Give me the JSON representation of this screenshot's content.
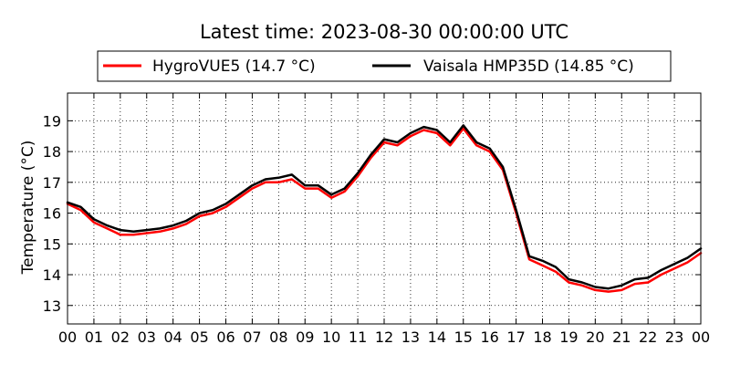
{
  "chart_data": {
    "type": "line",
    "title": "Latest time: 2023-08-30 00:00:00 UTC",
    "xlabel": "",
    "ylabel": "Temperature (°C)",
    "xlim": [
      0,
      24
    ],
    "ylim": [
      12.4,
      19.9
    ],
    "x_tick_labels": [
      "00",
      "01",
      "02",
      "03",
      "04",
      "05",
      "06",
      "07",
      "08",
      "09",
      "10",
      "11",
      "12",
      "13",
      "14",
      "15",
      "16",
      "17",
      "18",
      "19",
      "20",
      "21",
      "22",
      "23",
      "00"
    ],
    "y_ticks": [
      13,
      14,
      15,
      16,
      17,
      18,
      19
    ],
    "grid": true,
    "legend_position": "top",
    "series": [
      {
        "name": "HygroVUE5 (14.7 °C)",
        "color": "#ff0000",
        "x": [
          0,
          0.5,
          1,
          1.5,
          2,
          2.5,
          3,
          3.5,
          4,
          4.5,
          5,
          5.5,
          6,
          6.5,
          7,
          7.5,
          8,
          8.5,
          9,
          9.5,
          10,
          10.5,
          11,
          11.5,
          12,
          12.5,
          13,
          13.5,
          14,
          14.5,
          15,
          15.5,
          16,
          16.5,
          17,
          17.5,
          18,
          18.5,
          19,
          19.5,
          20,
          20.5,
          21,
          21.5,
          22,
          22.5,
          23,
          23.5,
          24
        ],
        "y": [
          16.3,
          16.1,
          15.7,
          15.5,
          15.3,
          15.3,
          15.35,
          15.4,
          15.5,
          15.65,
          15.9,
          16.0,
          16.2,
          16.5,
          16.8,
          17.0,
          17.0,
          17.1,
          16.8,
          16.8,
          16.5,
          16.7,
          17.2,
          17.8,
          18.3,
          18.2,
          18.5,
          18.7,
          18.6,
          18.2,
          18.75,
          18.2,
          18.0,
          17.4,
          16.0,
          14.5,
          14.3,
          14.1,
          13.75,
          13.65,
          13.5,
          13.45,
          13.5,
          13.7,
          13.75,
          14.0,
          14.2,
          14.4,
          14.7
        ]
      },
      {
        "name": "Vaisala HMP35D (14.85 °C)",
        "color": "#000000",
        "x": [
          0,
          0.5,
          1,
          1.5,
          2,
          2.5,
          3,
          3.5,
          4,
          4.5,
          5,
          5.5,
          6,
          6.5,
          7,
          7.5,
          8,
          8.5,
          9,
          9.5,
          10,
          10.5,
          11,
          11.5,
          12,
          12.5,
          13,
          13.5,
          14,
          14.5,
          15,
          15.5,
          16,
          16.5,
          17,
          17.5,
          18,
          18.5,
          19,
          19.5,
          20,
          20.5,
          21,
          21.5,
          22,
          22.5,
          23,
          23.5,
          24
        ],
        "y": [
          16.35,
          16.2,
          15.8,
          15.6,
          15.45,
          15.4,
          15.45,
          15.5,
          15.6,
          15.75,
          16.0,
          16.1,
          16.3,
          16.6,
          16.9,
          17.1,
          17.15,
          17.25,
          16.9,
          16.9,
          16.6,
          16.8,
          17.3,
          17.9,
          18.4,
          18.3,
          18.6,
          18.8,
          18.7,
          18.3,
          18.85,
          18.3,
          18.1,
          17.5,
          16.1,
          14.6,
          14.45,
          14.25,
          13.85,
          13.75,
          13.6,
          13.55,
          13.65,
          13.85,
          13.9,
          14.15,
          14.35,
          14.55,
          14.85
        ]
      }
    ]
  }
}
